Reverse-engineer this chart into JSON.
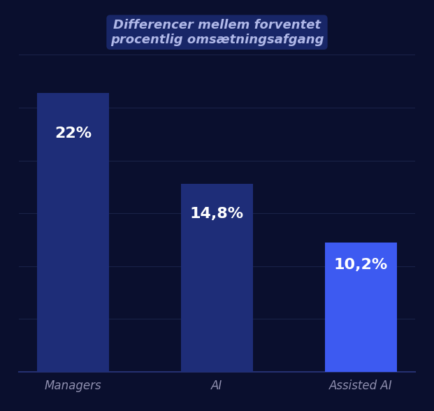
{
  "title_line1": "Differencer mellem forventet",
  "title_line2": "procentlig omsætningsafgang",
  "categories": [
    "Managers",
    "AI",
    "Assisted AI"
  ],
  "values": [
    22,
    14.8,
    10.2
  ],
  "bar_colors": [
    "#1e2d78",
    "#1e2d78",
    "#3d5af1"
  ],
  "bar_labels": [
    "22%",
    "14,8%",
    "10,2%"
  ],
  "background_color": "#0a0f2e",
  "title_color": "#b0b8e8",
  "title_highlight_color": "#1e3080",
  "label_color": "#ffffff",
  "xtick_color": "#9090b0",
  "grid_color": "#1a2248",
  "ylim": [
    0,
    25
  ],
  "title_fontsize": 13,
  "bar_label_fontsize": 16,
  "xtick_fontsize": 12,
  "bar_width": 0.5,
  "figsize": [
    6.21,
    5.88
  ],
  "dpi": 100
}
